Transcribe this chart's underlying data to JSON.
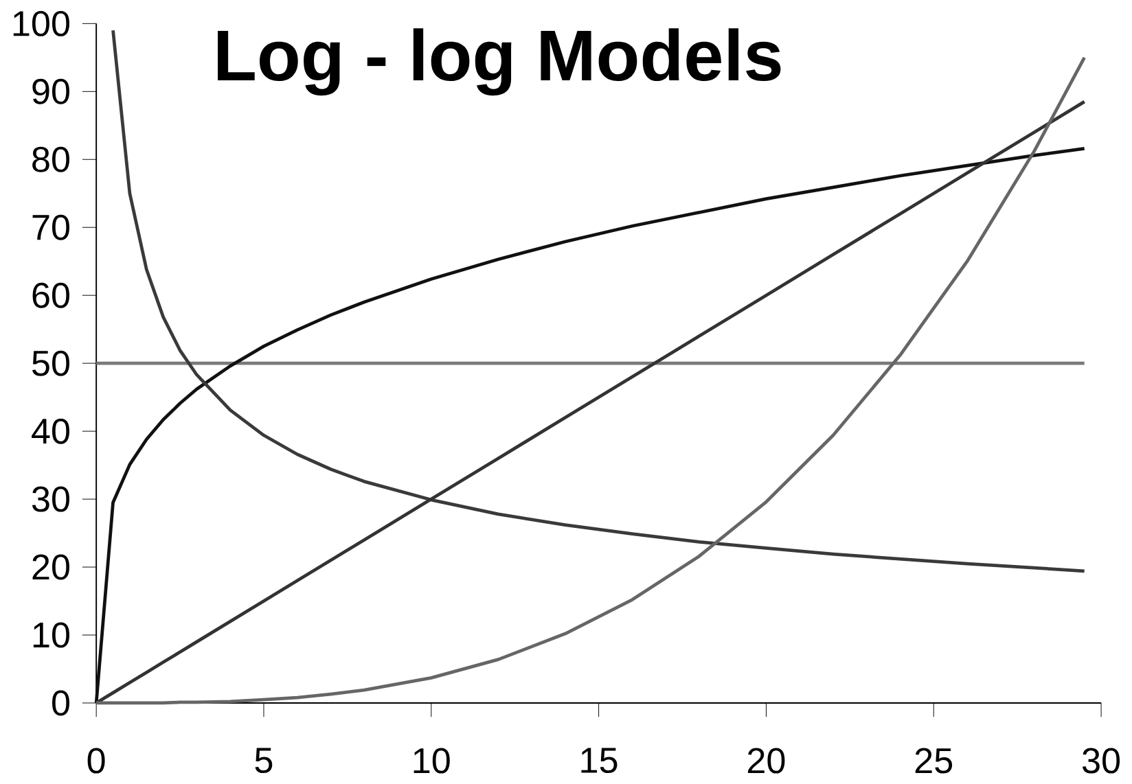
{
  "chart_data": {
    "type": "line",
    "title": "Log - log Models",
    "x": [
      0,
      0.5,
      1,
      1.5,
      2,
      2.5,
      3,
      4,
      5,
      6,
      7,
      8,
      10,
      12,
      14,
      16,
      18,
      20,
      22,
      24,
      26,
      28,
      29.5
    ],
    "series": [
      {
        "color": "#7a7a7a",
        "values": [
          50,
          50,
          50,
          50,
          50,
          50,
          50,
          50,
          50,
          50,
          50,
          50,
          50,
          50,
          50,
          50,
          50,
          50,
          50,
          50,
          50,
          50,
          50
        ]
      },
      {
        "color": "#111111",
        "values": [
          0,
          29.5,
          35.1,
          38.8,
          41.7,
          44.1,
          46.2,
          49.6,
          52.5,
          54.9,
          57.1,
          59.0,
          62.4,
          65.3,
          67.9,
          70.2,
          72.2,
          74.2,
          75.9,
          77.6,
          79.1,
          80.6,
          81.6
        ]
      },
      {
        "color": "#3a3a3a",
        "values": [
          null,
          99,
          75,
          63.8,
          56.8,
          51.9,
          48.3,
          43.1,
          39.4,
          36.6,
          34.4,
          32.6,
          29.9,
          27.8,
          26.2,
          24.9,
          23.7,
          22.8,
          21.9,
          21.2,
          20.5,
          19.9,
          19.4
        ]
      },
      {
        "color": "#333333",
        "values": [
          0,
          1.5,
          3,
          4.5,
          6,
          7.5,
          9,
          12,
          15,
          18,
          21,
          24,
          30,
          36,
          42,
          48,
          54,
          60,
          66,
          72,
          78,
          84,
          88.5
        ]
      },
      {
        "color": "#666666",
        "values": [
          0,
          0,
          0,
          0,
          0,
          0.1,
          0.1,
          0.2,
          0.5,
          0.8,
          1.3,
          1.9,
          3.7,
          6.4,
          10.2,
          15.2,
          21.6,
          29.6,
          39.4,
          51.2,
          65.0,
          81.2,
          95
        ]
      }
    ],
    "xlim": [
      0,
      30
    ],
    "xticks": [
      0,
      5,
      10,
      15,
      20,
      25,
      30
    ],
    "ylim": [
      0,
      100
    ],
    "yticks": [
      0,
      10,
      20,
      30,
      40,
      50,
      60,
      70,
      80,
      90,
      100
    ],
    "grid": false,
    "marker": "none",
    "line_style": "solid"
  }
}
